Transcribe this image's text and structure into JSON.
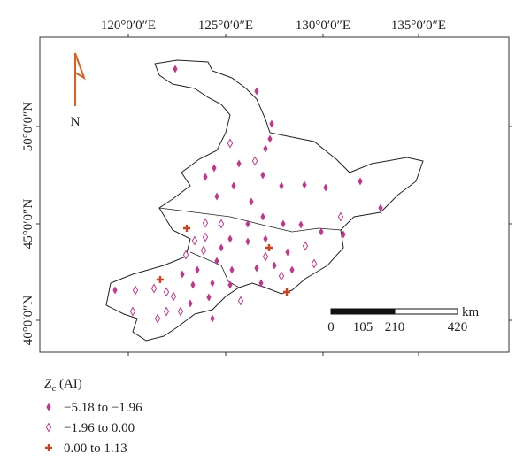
{
  "map": {
    "lon_labels": [
      "120°0′0″E",
      "125°0′0″E",
      "130°0′0″E",
      "135°0′0″E"
    ],
    "lat_labels": [
      "50°0′0″N",
      "45°0′0″N",
      "40°0′0″N"
    ],
    "north": "N",
    "scale": {
      "unit": "km",
      "labels": [
        "0",
        "105",
        "210",
        "420"
      ]
    }
  },
  "legend": {
    "title_symbol": "Z",
    "title_subscript": "c",
    "title_rest": " (AI)",
    "entries": [
      "−5.18 to −1.96",
      "−1.96 to 0.00",
      "0.00 to 1.13"
    ]
  }
}
